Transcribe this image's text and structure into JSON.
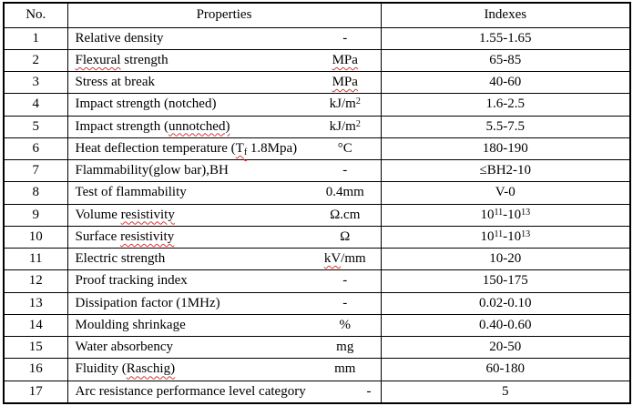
{
  "document": {
    "background": "#ffffff",
    "text_color": "#000000",
    "border_color": "#000000",
    "squiggle_color": "#d23a3a"
  },
  "table": {
    "headers": {
      "no": "No.",
      "properties": "Properties",
      "indexes": "Indexes"
    },
    "rows": [
      {
        "no": "1",
        "name": [
          [
            "Relative density"
          ]
        ],
        "unit": [
          [
            "-"
          ]
        ],
        "index": [
          [
            "1.55-1.65"
          ]
        ]
      },
      {
        "no": "2",
        "name": [
          [
            "Flexural",
            "sq"
          ],
          [
            " strength"
          ]
        ],
        "unit": [
          [
            "MPa",
            "sq"
          ]
        ],
        "index": [
          [
            "65-85"
          ]
        ]
      },
      {
        "no": "3",
        "name": [
          [
            "Stress at break"
          ]
        ],
        "unit": [
          [
            "MPa",
            "sq"
          ]
        ],
        "index": [
          [
            "40-60"
          ]
        ]
      },
      {
        "no": "4",
        "name": [
          [
            "Impact strength (notched)"
          ]
        ],
        "unit": [
          [
            "kJ/m"
          ],
          [
            "2",
            "sup"
          ]
        ],
        "index": [
          [
            "1.6-2.5"
          ]
        ]
      },
      {
        "no": "5",
        "name": [
          [
            "Impact strength ("
          ],
          [
            "unnotched)",
            "sq"
          ]
        ],
        "unit": [
          [
            "kJ/m"
          ],
          [
            "2",
            "sup"
          ]
        ],
        "index": [
          [
            "5.5-7.5"
          ]
        ]
      },
      {
        "no": "6",
        "name": [
          [
            "Heat deflection temperature ("
          ],
          [
            "T",
            "sq"
          ],
          [
            "f",
            "sub sq"
          ],
          [
            " 1.8Mpa)"
          ]
        ],
        "unit": [
          [
            "°C"
          ]
        ],
        "index": [
          [
            "180-190"
          ]
        ]
      },
      {
        "no": "7",
        "name": [
          [
            "Flammability(glow bar),BH"
          ]
        ],
        "unit": [
          [
            "-"
          ]
        ],
        "index": [
          [
            "≤BH2-10"
          ]
        ]
      },
      {
        "no": "8",
        "name": [
          [
            "Test of flammability"
          ]
        ],
        "unit": [
          [
            "0.4mm"
          ]
        ],
        "index": [
          [
            "V-0"
          ]
        ]
      },
      {
        "no": "9",
        "name": [
          [
            "Volume "
          ],
          [
            "resistivity",
            "sq"
          ]
        ],
        "unit": [
          [
            "Ω.cm"
          ]
        ],
        "index": [
          [
            "10"
          ],
          [
            "11",
            "sup"
          ],
          [
            "-10"
          ],
          [
            "13",
            "sup"
          ]
        ]
      },
      {
        "no": "10",
        "name": [
          [
            "Surface "
          ],
          [
            "resistivity",
            "sq"
          ]
        ],
        "unit": [
          [
            "Ω"
          ]
        ],
        "index": [
          [
            "10"
          ],
          [
            "11",
            "sup"
          ],
          [
            "-10"
          ],
          [
            "13",
            "sup"
          ]
        ]
      },
      {
        "no": "11",
        "name": [
          [
            "Electric strength"
          ]
        ],
        "unit": [
          [
            "kV",
            "sq"
          ],
          [
            "/mm"
          ]
        ],
        "index": [
          [
            "10-20"
          ]
        ]
      },
      {
        "no": "12",
        "name": [
          [
            "Proof tracking index"
          ]
        ],
        "unit": [
          [
            "-"
          ]
        ],
        "index": [
          [
            "150-175"
          ]
        ]
      },
      {
        "no": "13",
        "name": [
          [
            "Dissipation factor (1MHz)"
          ]
        ],
        "unit": [
          [
            "-"
          ]
        ],
        "index": [
          [
            "0.02-0.10"
          ]
        ]
      },
      {
        "no": "14",
        "name": [
          [
            "Moulding shrinkage"
          ]
        ],
        "unit": [
          [
            "%"
          ]
        ],
        "index": [
          [
            "0.40-0.60"
          ]
        ]
      },
      {
        "no": "15",
        "name": [
          [
            "Water absorbency"
          ]
        ],
        "unit": [
          [
            "mg"
          ]
        ],
        "index": [
          [
            "20-50"
          ]
        ]
      },
      {
        "no": "16",
        "name": [
          [
            "Fluidity ("
          ],
          [
            "Raschig)",
            "sq"
          ]
        ],
        "unit": [
          [
            "mm"
          ]
        ],
        "index": [
          [
            "60-180"
          ]
        ]
      },
      {
        "no": "17",
        "name": [
          [
            "Arc resistance performance level category"
          ]
        ],
        "unit": [
          [
            "-"
          ]
        ],
        "unit_right": true,
        "index": [
          [
            "5"
          ]
        ]
      }
    ]
  }
}
